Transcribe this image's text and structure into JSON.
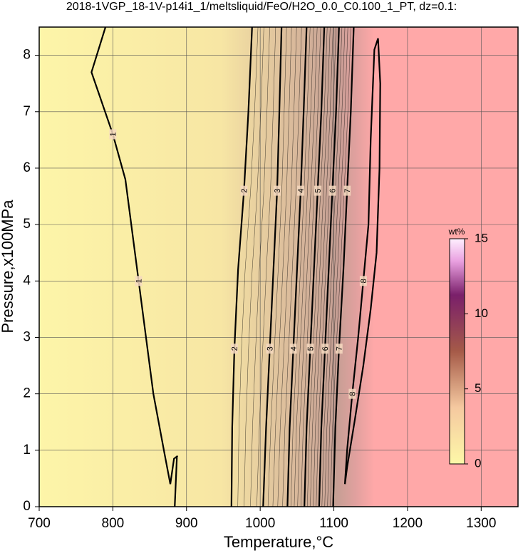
{
  "chart_data": {
    "type": "contour",
    "title": "2018-1VGP_18-1V-p14i1_1/meltsliquid/FeO/H2O_0.0_C0.100_1_PT, dz=0.1:",
    "xlabel": "Temperature,°C",
    "ylabel": "Pressure,x100MPa",
    "xlim": [
      700,
      1350
    ],
    "ylim": [
      0,
      8.5
    ],
    "xticks": [
      700,
      800,
      900,
      1000,
      1100,
      1200,
      1300
    ],
    "yticks": [
      0,
      1,
      2,
      3,
      4,
      5,
      6,
      7,
      8
    ],
    "grid": true,
    "contours": [
      {
        "level": 1,
        "x": [
          790,
          771,
          800,
          817,
          835,
          855,
          870,
          878,
          883,
          888,
          null,
          884,
          887
        ],
        "y": [
          8.5,
          7.7,
          6.6,
          5.8,
          4,
          2,
          0.95,
          0.4,
          0.85,
          0.9,
          null,
          0,
          0.9
        ]
      },
      {
        "level": 2,
        "x": [
          961,
          962,
          965,
          970,
          978,
          984,
          989
        ],
        "y": [
          0,
          1.4,
          2.8,
          4.2,
          5.6,
          7,
          8.5
        ]
      },
      {
        "level": 3,
        "x": [
          1004,
          1008,
          1013,
          1018,
          1023,
          1026,
          1029
        ],
        "y": [
          0,
          1.4,
          2.8,
          4.2,
          5.6,
          7,
          8.5
        ]
      },
      {
        "level": 4,
        "x": [
          1037,
          1040,
          1045,
          1050,
          1055,
          1059,
          1063
        ],
        "y": [
          0,
          1.4,
          2.8,
          4.2,
          5.6,
          7,
          8.5
        ]
      },
      {
        "level": 5,
        "x": [
          1060,
          1063,
          1068,
          1073,
          1078,
          1083,
          1087
        ],
        "y": [
          0,
          1.4,
          2.8,
          4.2,
          5.6,
          7,
          8.5
        ]
      },
      {
        "level": 6,
        "x": [
          1080,
          1083,
          1088,
          1093,
          1098,
          1103,
          1107
        ],
        "y": [
          0,
          1.4,
          2.8,
          4.2,
          5.6,
          7,
          8.5
        ]
      },
      {
        "level": 7,
        "x": [
          1099,
          1102,
          1107,
          1113,
          1118,
          1123,
          1127
        ],
        "y": [
          0,
          1.4,
          2.8,
          4.2,
          5.6,
          7,
          8.5
        ]
      },
      {
        "level": 8,
        "x": [
          1115,
          1118,
          1125,
          1133,
          1140,
          1147,
          1150,
          1155,
          1160,
          1163,
          1162,
          1158,
          1150,
          1140,
          1128,
          1118,
          1115
        ],
        "y": [
          0.4,
          1,
          2,
          3,
          4,
          5,
          6.5,
          8.1,
          8.3,
          7.5,
          6,
          4.5,
          3.5,
          2.5,
          1.5,
          0.7,
          0.4
        ]
      }
    ],
    "colorbar": {
      "label": "wt%",
      "lim": [
        0,
        15
      ],
      "ticks": [
        0,
        5,
        10,
        15
      ]
    }
  }
}
